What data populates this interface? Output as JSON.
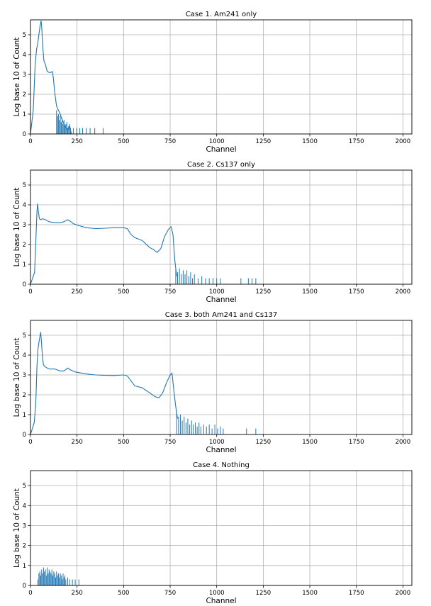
{
  "chart_data": [
    {
      "type": "line",
      "title": "Case 1. Am241 only",
      "xlabel": "Channel",
      "ylabel": "Log base 10 of Count",
      "xlim": [
        0,
        2048
      ],
      "ylim": [
        0,
        5.75
      ],
      "xticks": [
        0,
        250,
        500,
        750,
        1000,
        1250,
        1500,
        1750,
        2000
      ],
      "yticks": [
        0,
        1,
        2,
        3,
        4,
        5
      ],
      "grid": true,
      "series": [
        {
          "x": [
            0,
            15,
            25,
            33,
            38,
            45,
            52,
            57,
            60,
            65,
            72,
            80,
            90,
            100,
            110,
            118,
            123,
            128,
            133,
            140,
            150,
            160,
            170,
            180,
            190,
            200,
            210,
            220
          ],
          "values": [
            0,
            1.2,
            3.5,
            4.3,
            4.5,
            5.0,
            5.5,
            5.7,
            5.4,
            4.5,
            3.7,
            3.5,
            3.15,
            3.1,
            3.1,
            3.15,
            2.8,
            2.3,
            1.9,
            1.4,
            1.2,
            1.0,
            0.7,
            0.5,
            0.3,
            0.2,
            0.4,
            0
          ]
        }
      ],
      "spikes": {
        "x": [
          140,
          145,
          150,
          155,
          160,
          165,
          170,
          175,
          180,
          185,
          190,
          195,
          200,
          205,
          210,
          215,
          230,
          248,
          265,
          280,
          300,
          320,
          345,
          390
        ],
        "values": [
          1.2,
          0.9,
          1.0,
          0.7,
          0.9,
          0.6,
          0.8,
          0.5,
          0.7,
          0.4,
          0.5,
          0.6,
          0.3,
          0.4,
          0.5,
          0.3,
          0.3,
          0.3,
          0.3,
          0.3,
          0.3,
          0.3,
          0.3,
          0.3
        ]
      }
    },
    {
      "type": "line",
      "title": "Case 2. Cs137 only",
      "xlabel": "Channel",
      "ylabel": "Log base 10 of Count",
      "xlim": [
        0,
        2048
      ],
      "ylim": [
        0,
        5.75
      ],
      "xticks": [
        0,
        250,
        500,
        750,
        1000,
        1250,
        1500,
        1750,
        2000
      ],
      "yticks": [
        0,
        1,
        2,
        3,
        4,
        5
      ],
      "grid": true,
      "series": [
        {
          "x": [
            0,
            22,
            30,
            35,
            38,
            42,
            48,
            55,
            65,
            80,
            100,
            130,
            160,
            180,
            200,
            210,
            230,
            260,
            300,
            350,
            400,
            450,
            500,
            520,
            540,
            560,
            600,
            640,
            660,
            680,
            700,
            720,
            740,
            755,
            765,
            775,
            785
          ],
          "values": [
            0,
            0.6,
            2.5,
            3.7,
            4.05,
            3.7,
            3.3,
            3.25,
            3.3,
            3.25,
            3.15,
            3.1,
            3.1,
            3.15,
            3.25,
            3.2,
            3.05,
            2.95,
            2.85,
            2.8,
            2.82,
            2.85,
            2.85,
            2.8,
            2.5,
            2.35,
            2.2,
            1.85,
            1.75,
            1.6,
            1.8,
            2.4,
            2.75,
            2.9,
            2.5,
            1.2,
            0.4
          ]
        }
      ],
      "spikes": {
        "x": [
          780,
          790,
          800,
          810,
          820,
          830,
          840,
          850,
          860,
          870,
          880,
          900,
          920,
          940,
          960,
          980,
          1000,
          1020,
          1130,
          1170,
          1190,
          1210
        ],
        "values": [
          0.8,
          0.6,
          0.8,
          0.5,
          0.7,
          0.5,
          0.7,
          0.4,
          0.6,
          0.3,
          0.5,
          0.3,
          0.4,
          0.3,
          0.3,
          0.3,
          0.3,
          0.3,
          0.3,
          0.3,
          0.3,
          0.3
        ]
      }
    },
    {
      "type": "line",
      "title": "Case 3. both Am241 and Cs137",
      "xlabel": "Channel",
      "ylabel": "Log base 10 of Count",
      "xlim": [
        0,
        2048
      ],
      "ylim": [
        0,
        5.75
      ],
      "xticks": [
        0,
        250,
        500,
        750,
        1000,
        1250,
        1500,
        1750,
        2000
      ],
      "yticks": [
        0,
        1,
        2,
        3,
        4,
        5
      ],
      "grid": true,
      "series": [
        {
          "x": [
            0,
            20,
            28,
            35,
            40,
            48,
            55,
            60,
            65,
            70,
            80,
            100,
            130,
            160,
            180,
            200,
            215,
            240,
            300,
            350,
            400,
            450,
            500,
            520,
            540,
            560,
            600,
            640,
            670,
            690,
            710,
            730,
            750,
            760,
            770,
            780,
            790
          ],
          "values": [
            0,
            0.6,
            1.5,
            3.5,
            4.3,
            4.8,
            5.15,
            4.5,
            3.8,
            3.5,
            3.4,
            3.3,
            3.3,
            3.2,
            3.2,
            3.35,
            3.25,
            3.15,
            3.05,
            3.0,
            2.98,
            2.97,
            3.0,
            2.95,
            2.7,
            2.45,
            2.35,
            2.1,
            1.9,
            1.85,
            2.1,
            2.6,
            3.0,
            3.1,
            2.2,
            1.4,
            0.8
          ]
        }
      ],
      "spikes": {
        "x": [
          785,
          795,
          805,
          815,
          825,
          835,
          845,
          855,
          865,
          875,
          885,
          895,
          905,
          915,
          930,
          945,
          960,
          975,
          990,
          1005,
          1020,
          1035,
          1160,
          1210
        ],
        "values": [
          1.2,
          0.9,
          1.0,
          0.7,
          0.9,
          0.6,
          0.8,
          0.5,
          0.7,
          0.5,
          0.6,
          0.4,
          0.6,
          0.4,
          0.5,
          0.4,
          0.5,
          0.3,
          0.5,
          0.3,
          0.4,
          0.3,
          0.3,
          0.3
        ]
      }
    },
    {
      "type": "line",
      "title": "Case 4. Nothing",
      "xlabel": "Channel",
      "ylabel": "Log base 10 of Count",
      "xlim": [
        0,
        2048
      ],
      "ylim": [
        0,
        5.75
      ],
      "xticks": [
        0,
        250,
        500,
        750,
        1000,
        1250,
        1500,
        1750,
        2000
      ],
      "yticks": [
        0,
        1,
        2,
        3,
        4,
        5
      ],
      "grid": true,
      "series": [
        {
          "x": [
            0,
            2048
          ],
          "values": [
            0,
            0
          ]
        }
      ],
      "spikes": {
        "x": [
          40,
          45,
          50,
          55,
          60,
          65,
          70,
          75,
          80,
          85,
          90,
          95,
          100,
          105,
          110,
          115,
          120,
          125,
          130,
          135,
          140,
          145,
          150,
          155,
          160,
          165,
          170,
          175,
          180,
          185,
          190,
          200,
          210,
          225,
          240,
          260
        ],
        "values": [
          0.3,
          0.6,
          0.7,
          0.5,
          0.8,
          0.6,
          0.9,
          0.7,
          0.8,
          0.5,
          0.9,
          0.6,
          0.8,
          0.7,
          0.6,
          0.8,
          0.5,
          0.7,
          0.6,
          0.4,
          0.7,
          0.5,
          0.6,
          0.4,
          0.6,
          0.5,
          0.3,
          0.6,
          0.4,
          0.5,
          0.3,
          0.4,
          0.3,
          0.3,
          0.3,
          0.3
        ]
      }
    }
  ]
}
